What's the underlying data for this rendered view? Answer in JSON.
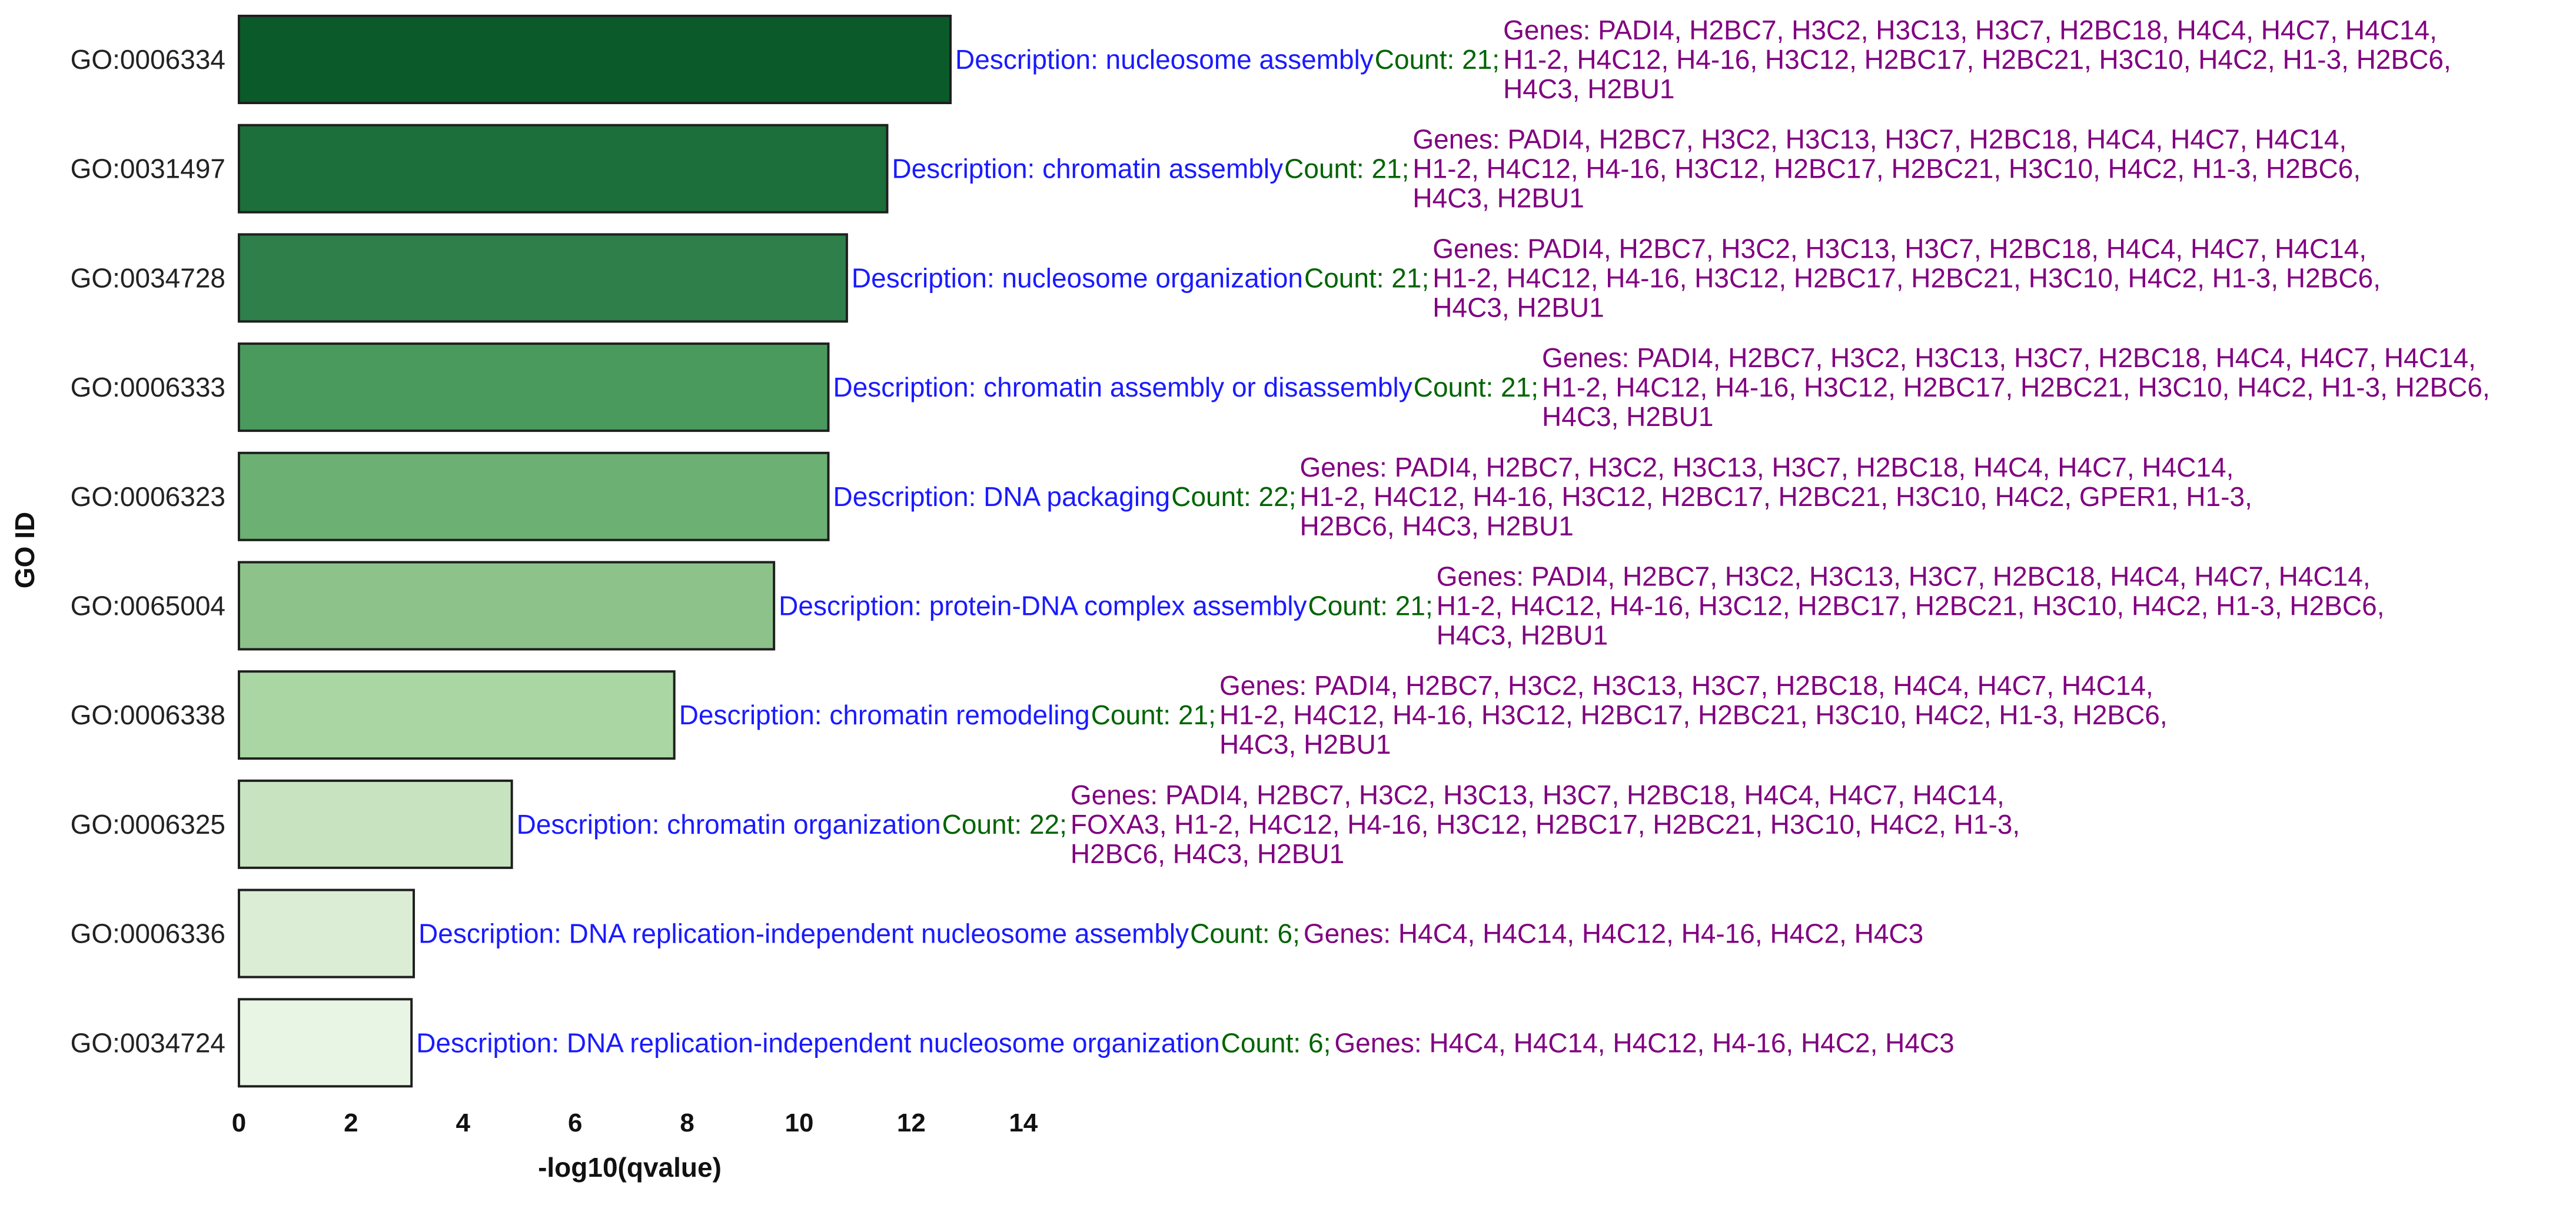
{
  "chart_data": {
    "type": "bar",
    "orientation": "horizontal",
    "title": "",
    "xlabel": "-log10(qvalue)",
    "ylabel": "GO ID",
    "xlim": [
      0,
      14
    ],
    "xticks": [
      0,
      2,
      4,
      6,
      8,
      10,
      12,
      14
    ],
    "grid": false,
    "legend": "none",
    "annotation_colors": {
      "description": "#1a1aff",
      "count": "#006400",
      "genes": "#800080"
    },
    "bars": [
      {
        "id": "GO:0006334",
        "value": 12.7,
        "color": "#0b5a2a",
        "description": "Description: nucleosome assembly",
        "count": "Count: 21",
        "genes_lines": [
          "Genes: PADI4, H2BC7, H3C2, H3C13, H3C7, H2BC18, H4C4, H4C7, H4C14,",
          "H1-2, H4C12, H4-16, H3C12, H2BC17, H2BC21, H3C10, H4C2, H1-3, H2BC6,",
          "H4C3, H2BU1"
        ]
      },
      {
        "id": "GO:0031497",
        "value": 11.57,
        "color": "#1c6f3a",
        "description": "Description: chromatin assembly",
        "count": "Count: 21",
        "genes_lines": [
          "Genes: PADI4, H2BC7, H3C2, H3C13, H3C7, H2BC18, H4C4, H4C7, H4C14,",
          "H1-2, H4C12, H4-16, H3C12, H2BC17, H2BC21, H3C10, H4C2, H1-3, H2BC6,",
          "H4C3, H2BU1"
        ]
      },
      {
        "id": "GO:0034728",
        "value": 10.85,
        "color": "#2e7f4a",
        "description": "Description: nucleosome organization",
        "count": "Count: 21",
        "genes_lines": [
          "Genes: PADI4, H2BC7, H3C2, H3C13, H3C7, H2BC18, H4C4, H4C7, H4C14,",
          "H1-2, H4C12, H4-16, H3C12, H2BC17, H2BC21, H3C10, H4C2, H1-3, H2BC6,",
          "H4C3, H2BU1"
        ]
      },
      {
        "id": "GO:0006333",
        "value": 10.52,
        "color": "#4a9a5e",
        "description": "Description: chromatin assembly or disassembly",
        "count": "Count: 21",
        "genes_lines": [
          "Genes: PADI4, H2BC7, H3C2, H3C13, H3C7, H2BC18, H4C4, H4C7, H4C14,",
          "H1-2, H4C12, H4-16, H3C12, H2BC17, H2BC21, H3C10, H4C2, H1-3, H2BC6,",
          "H4C3, H2BU1"
        ]
      },
      {
        "id": "GO:0006323",
        "value": 10.52,
        "color": "#6cb074",
        "description": "Description: DNA packaging",
        "count": "Count: 22",
        "genes_lines": [
          "Genes: PADI4, H2BC7, H3C2, H3C13, H3C7, H2BC18, H4C4, H4C7, H4C14,",
          "H1-2, H4C12, H4-16, H3C12, H2BC17, H2BC21, H3C10, H4C2, GPER1, H1-3,",
          "H2BC6, H4C3, H2BU1"
        ]
      },
      {
        "id": "GO:0065004",
        "value": 9.55,
        "color": "#8dc38a",
        "description": "Description: protein-DNA complex assembly",
        "count": "Count: 21",
        "genes_lines": [
          "Genes: PADI4, H2BC7, H3C2, H3C13, H3C7, H2BC18, H4C4, H4C7, H4C14,",
          "H1-2, H4C12, H4-16, H3C12, H2BC17, H2BC21, H3C10, H4C2, H1-3, H2BC6,",
          "H4C3, H2BU1"
        ]
      },
      {
        "id": "GO:0006338",
        "value": 7.77,
        "color": "#aad6a3",
        "description": "Description: chromatin remodeling",
        "count": "Count: 21",
        "genes_lines": [
          "Genes: PADI4, H2BC7, H3C2, H3C13, H3C7, H2BC18, H4C4, H4C7, H4C14,",
          "H1-2, H4C12, H4-16, H3C12, H2BC17, H2BC21, H3C10, H4C2, H1-3, H2BC6,",
          "H4C3, H2BU1"
        ]
      },
      {
        "id": "GO:0006325",
        "value": 4.87,
        "color": "#c7e3c0",
        "description": "Description: chromatin organization",
        "count": "Count: 22",
        "genes_lines": [
          "Genes: PADI4, H2BC7, H3C2, H3C13, H3C7, H2BC18, H4C4, H4C7, H4C14,",
          "FOXA3, H1-2, H4C12, H4-16, H3C12, H2BC17, H2BC21, H3C10, H4C2, H1-3,",
          "H2BC6, H4C3, H2BU1"
        ]
      },
      {
        "id": "GO:0006336",
        "value": 3.12,
        "color": "#dbeed5",
        "description": "Description: DNA replication-independent nucleosome assembly",
        "count": "Count: 6",
        "genes_lines": [
          "Genes: H4C4, H4C14, H4C12, H4-16, H4C2, H4C3"
        ]
      },
      {
        "id": "GO:0034724",
        "value": 3.08,
        "color": "#e9f5e4",
        "description": "Description: DNA replication-independent nucleosome organization",
        "count": "Count: 6",
        "genes_lines": [
          "Genes: H4C4, H4C14, H4C12, H4-16, H4C2, H4C3"
        ]
      }
    ]
  }
}
